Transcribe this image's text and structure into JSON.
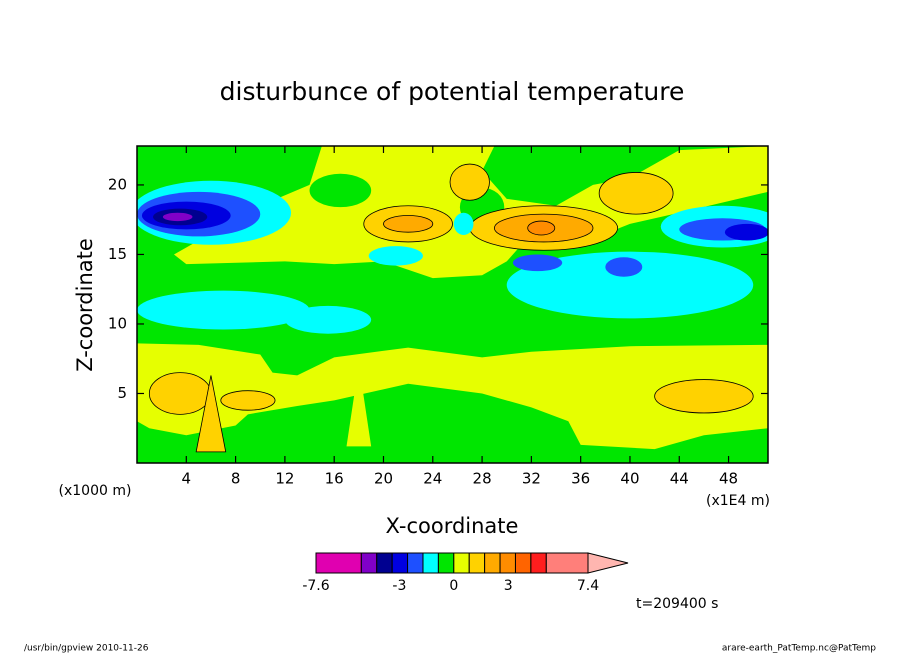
{
  "chart_data": {
    "type": "contour",
    "title": "disturbunce of potential temperature",
    "x_label": "X-coordinate",
    "y_label": "Z-coordinate",
    "y_unit": "(x1000 m)",
    "x_unit": "(x1E4 m)",
    "time_label": "t=209400 s",
    "footer_left": "/usr/bin/gpview   2010-11-26",
    "footer_right": "arare-earth_PatTemp.nc@PatTemp",
    "xlim": [
      0,
      51.2
    ],
    "ylim": [
      0,
      22.8
    ],
    "xticks": [
      4,
      8,
      12,
      16,
      20,
      24,
      28,
      32,
      36,
      40,
      44,
      48
    ],
    "yticks": [
      5,
      10,
      15,
      20
    ],
    "background_value": -0.4,
    "colorbar": {
      "levels": [
        -7.6,
        -5.1,
        -4.25,
        -3.4,
        -2.55,
        -1.7,
        -0.85,
        0,
        0.85,
        1.7,
        2.55,
        3.4,
        4.25,
        5.1,
        7.4
      ],
      "colors": [
        "#e000b0",
        "#8000c8",
        "#000090",
        "#0000e0",
        "#1e50ff",
        "#00ffff",
        "#00e600",
        "#e6ff00",
        "#ffd200",
        "#ffaa00",
        "#ff8c00",
        "#ff6400",
        "#ff1e1e",
        "#ff7f7a"
      ],
      "over_color": "#ffb6b0",
      "ticks": [
        -7.6,
        -3,
        0,
        3,
        7.4
      ]
    },
    "regions": [
      {
        "value": 0.4,
        "x": [
          0,
          5,
          10,
          11,
          13,
          16,
          22,
          28,
          32,
          40,
          51.2,
          51.2,
          46,
          42,
          36,
          35,
          32,
          28,
          22,
          16,
          13,
          9,
          8,
          4,
          1,
          0
        ],
        "z": [
          8.6,
          8.5,
          7.8,
          6.5,
          6.3,
          7.6,
          8.3,
          7.6,
          8,
          8.4,
          8.5,
          2.5,
          2,
          1,
          1.3,
          3,
          4,
          5,
          5.7,
          4.5,
          4.1,
          3.5,
          2.7,
          2,
          2.5,
          3
        ]
      },
      {
        "value": 0.4,
        "x": [
          3,
          5,
          10,
          14,
          15,
          29,
          28,
          30,
          34,
          37,
          40,
          44,
          51.2,
          51.2,
          44,
          40,
          36,
          32,
          30,
          28,
          24,
          20,
          16,
          12,
          4
        ],
        "z": [
          15,
          16,
          18.5,
          20,
          22.8,
          22.8,
          21,
          19,
          18.5,
          20,
          20.5,
          22.5,
          22.8,
          19.5,
          18,
          17.2,
          15.8,
          16.5,
          14.5,
          13.5,
          13.3,
          14.5,
          14.3,
          14.5,
          14.3
        ]
      },
      {
        "value": -0.4,
        "cx": 16.5,
        "cz": 19.6,
        "rx": 2.5,
        "rz": 1.2
      },
      {
        "value": -0.4,
        "cx": 28,
        "cz": 18.4,
        "rx": 1.8,
        "rz": 1.4
      },
      {
        "value": 1.2,
        "cx": 27,
        "cz": 20.2,
        "rx": 1.6,
        "rz": 1.3
      },
      {
        "value": 1.2,
        "cx": 40.5,
        "cz": 19.4,
        "rx": 3,
        "rz": 1.5
      },
      {
        "value": 1.2,
        "cx": 22,
        "cz": 17.2,
        "rx": 3.6,
        "rz": 1.3
      },
      {
        "value": 2.1,
        "cx": 22,
        "cz": 17.2,
        "rx": 2,
        "rz": 0.6
      },
      {
        "value": 1.2,
        "cx": 33,
        "cz": 16.9,
        "rx": 6,
        "rz": 1.6
      },
      {
        "value": 2.1,
        "cx": 33,
        "cz": 16.9,
        "rx": 4,
        "rz": 1
      },
      {
        "value": 3,
        "cx": 32.8,
        "cz": 16.9,
        "rx": 1.1,
        "rz": 0.5
      },
      {
        "value": -1.2,
        "cx": 40,
        "cz": 12.8,
        "rx": 10,
        "rz": 2.4
      },
      {
        "value": -2.1,
        "cx": 32.5,
        "cz": 14.4,
        "rx": 2,
        "rz": 0.6
      },
      {
        "value": -2.1,
        "cx": 39.5,
        "cz": 14.1,
        "rx": 1.5,
        "rz": 0.7
      },
      {
        "value": -1.2,
        "cx": 47.5,
        "cz": 17,
        "rx": 5,
        "rz": 1.5
      },
      {
        "value": -2.1,
        "cx": 47.5,
        "cz": 16.8,
        "rx": 3.5,
        "rz": 0.8
      },
      {
        "value": -3,
        "cx": 49.5,
        "cz": 16.6,
        "rx": 1.8,
        "rz": 0.6
      },
      {
        "value": -1.2,
        "cx": 6,
        "cz": 18,
        "rx": 6.5,
        "rz": 2.3
      },
      {
        "value": -2.1,
        "cx": 5,
        "cz": 17.9,
        "rx": 5,
        "rz": 1.6
      },
      {
        "value": -3,
        "cx": 4,
        "cz": 17.8,
        "rx": 3.6,
        "rz": 1
      },
      {
        "value": -3.8,
        "cx": 3.5,
        "cz": 17.7,
        "rx": 2.2,
        "rz": 0.6
      },
      {
        "value": -4.6,
        "cx": 3.3,
        "cz": 17.7,
        "rx": 1.2,
        "rz": 0.3
      },
      {
        "value": -1.2,
        "cx": 21,
        "cz": 14.9,
        "rx": 2.2,
        "rz": 0.7
      },
      {
        "value": -1.2,
        "cx": 26.5,
        "cz": 17.2,
        "rx": 0.8,
        "rz": 0.8
      },
      {
        "value": -1.2,
        "cx": 7,
        "cz": 11,
        "rx": 7,
        "rz": 1.4
      },
      {
        "value": -1.2,
        "cx": 15.5,
        "cz": 10.3,
        "rx": 3.5,
        "rz": 1
      },
      {
        "value": 1.2,
        "cx": 3.5,
        "cz": 5,
        "rx": 2.5,
        "rz": 1.5
      },
      {
        "value": 1.2,
        "cx": 9,
        "cz": 4.5,
        "rx": 2.2,
        "rz": 0.7
      },
      {
        "value": 1.2,
        "cx": 46,
        "cz": 4.8,
        "rx": 4,
        "rz": 1.2
      },
      {
        "value": 1.2,
        "x": [
          4.8,
          6,
          7.2
        ],
        "z": [
          0.8,
          6.3,
          0.8
        ]
      },
      {
        "value": 0.4,
        "x": [
          17,
          18,
          19
        ],
        "z": [
          1.2,
          7.1,
          1.2
        ]
      }
    ]
  }
}
